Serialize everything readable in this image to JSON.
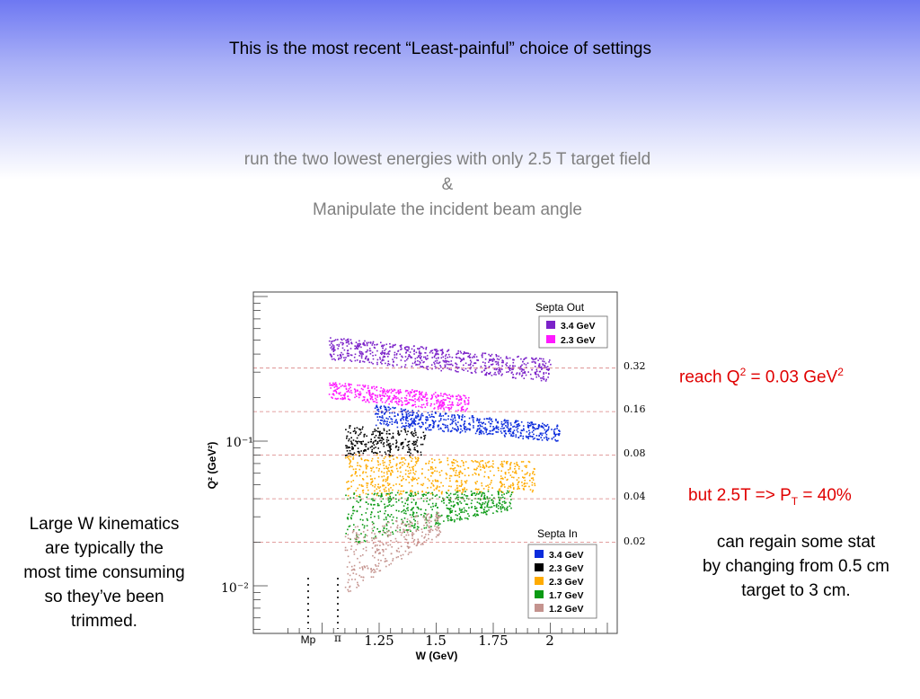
{
  "title": "This is the most recent “Least-painful” choice of settings",
  "subtitle_lines": [
    "run the two lowest energies with only 2.5 T target field",
    "&",
    "Manipulate the incident beam angle"
  ],
  "left_note_lines": [
    "Large W kinematics",
    "are typically the",
    "most time consuming",
    "so they’ve been",
    "trimmed."
  ],
  "reach": {
    "prefix": "reach Q",
    "sup1": "2",
    "mid": " = 0.03 GeV",
    "sup2": "2"
  },
  "polarization": {
    "prefix": "but 2.5T => P",
    "sub": "T",
    "suffix": " = 40%"
  },
  "regain_lines": [
    "can regain some stat",
    "by changing from 0.5 cm",
    "target to 3 cm."
  ],
  "colors": {
    "red_text": "#e00000",
    "purple": "#7b22c9",
    "magenta": "#ff1aff",
    "blue": "#0a2bdc",
    "black": "#000000",
    "orange": "#ffab00",
    "green": "#0a9a14",
    "pink": "#c4938e"
  },
  "chart_data": {
    "type": "scatter",
    "xlabel": "W (GeV)",
    "ylabel": "Q² (GeV²)",
    "x_ticks": [
      "1.25",
      "1.5",
      "1.75",
      "2"
    ],
    "x_markers": [
      "Mp",
      "π"
    ],
    "y_ticks": [
      "10⁻¹",
      "10⁻²"
    ],
    "y_scale": "log",
    "right_ticks": [
      "0.32",
      "0.16",
      "0.08",
      "0.04",
      "0.02"
    ],
    "legends": [
      {
        "title": "Septa Out",
        "entries": [
          {
            "label": "3.4 GeV",
            "color": "#7b22c9"
          },
          {
            "label": "2.3 GeV",
            "color": "#ff1aff"
          }
        ]
      },
      {
        "title": "Septa In",
        "entries": [
          {
            "label": "3.4 GeV",
            "color": "#0a2bdc"
          },
          {
            "label": "2.3 GeV",
            "color": "#000000"
          },
          {
            "label": "2.3 GeV",
            "color": "#ffab00"
          },
          {
            "label": "1.7 GeV",
            "color": "#0a9a14"
          },
          {
            "label": "1.2 GeV",
            "color": "#c4938e"
          }
        ]
      }
    ],
    "bands": [
      {
        "color": "#7b22c9",
        "w_range": [
          1.02,
          2.0
        ],
        "q2_low": [
          0.37,
          0.26
        ],
        "q2_high": [
          0.53,
          0.37
        ]
      },
      {
        "color": "#ff1aff",
        "w_range": [
          1.02,
          1.64
        ],
        "q2_low": [
          0.2,
          0.16
        ],
        "q2_high": [
          0.26,
          0.21
        ]
      },
      {
        "color": "#0a2bdc",
        "w_range": [
          1.22,
          2.04
        ],
        "q2_low": [
          0.13,
          0.1
        ],
        "q2_high": [
          0.18,
          0.13
        ]
      },
      {
        "color": "#000000",
        "w_range": [
          1.09,
          1.45
        ],
        "q2_low": [
          0.08,
          0.08
        ],
        "q2_high": [
          0.13,
          0.12
        ]
      },
      {
        "color": "#ffab00",
        "w_range": [
          1.09,
          1.93
        ],
        "q2_low": [
          0.042,
          0.045
        ],
        "q2_high": [
          0.083,
          0.073
        ]
      },
      {
        "color": "#0a9a14",
        "w_range": [
          1.09,
          1.83
        ],
        "q2_low": [
          0.019,
          0.034
        ],
        "q2_high": [
          0.044,
          0.046
        ]
      },
      {
        "color": "#c4938e",
        "w_range": [
          1.09,
          1.52
        ],
        "q2_low": [
          0.0086,
          0.023
        ],
        "q2_high": [
          0.025,
          0.033
        ]
      }
    ]
  }
}
